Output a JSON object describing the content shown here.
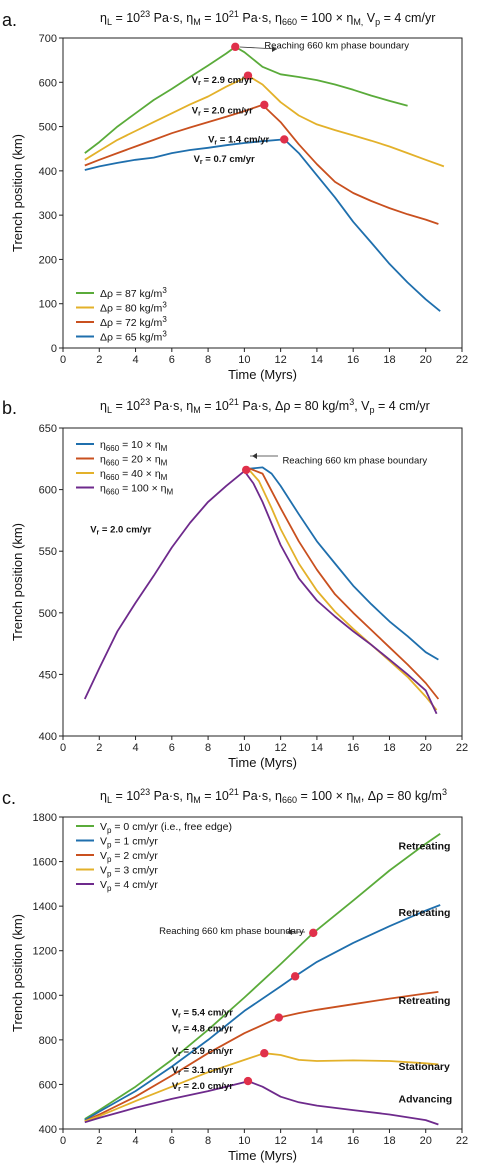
{
  "panels": [
    {
      "label": "a.",
      "title": "η_L = 10^23 Pa·s,  η_M = 10^21 Pa·s,  η_660 = 100 × η_M,  V_p = 4 cm/yr",
      "title_html": "η<tspan dy='3' font-size='9'>L</tspan><tspan dy='-3'> = 10</tspan><tspan dy='-5' font-size='9'>23</tspan><tspan dy='5'> Pa·s,  η</tspan><tspan dy='3' font-size='9'>M</tspan><tspan dy='-3'> = 10</tspan><tspan dy='-5' font-size='9'>21</tspan><tspan dy='5'> Pa·s,  η</tspan><tspan dy='3' font-size='9'>660</tspan><tspan dy='-3'> = 100 × η</tspan><tspan dy='3' font-size='9'>M,</tspan><tspan dy='-3'>  V</tspan><tspan dy='3' font-size='9'>p</tspan><tspan dy='-3'> = 4 cm/yr</tspan>"
    },
    {
      "label": "b.",
      "title": "η_L = 10^23 Pa·s,  η_M = 10^21 Pa·s,  Δρ = 80 kg/m³,  V_p = 4 cm/yr",
      "title_html": "η<tspan dy='3' font-size='9'>L</tspan><tspan dy='-3'> = 10</tspan><tspan dy='-5' font-size='9'>23</tspan><tspan dy='5'> Pa·s,  η</tspan><tspan dy='3' font-size='9'>M</tspan><tspan dy='-3'> = 10</tspan><tspan dy='-5' font-size='9'>21</tspan><tspan dy='5'> Pa·s,  Δρ = 80 kg/m</tspan><tspan dy='-5' font-size='9'>3</tspan><tspan dy='5'>,  V</tspan><tspan dy='3' font-size='9'>p</tspan><tspan dy='-3'> = 4 cm/yr</tspan>"
    },
    {
      "label": "c.",
      "title": "η_L = 10^23 Pa·s,  η_M = 10^21 Pa·s,  η_660 = 100 × η_M,  Δρ = 80 kg/m³",
      "title_html": "η<tspan dy='3' font-size='9'>L</tspan><tspan dy='-3'> = 10</tspan><tspan dy='-5' font-size='9'>23</tspan><tspan dy='5'> Pa·s,  η</tspan><tspan dy='3' font-size='9'>M</tspan><tspan dy='-3'> = 10</tspan><tspan dy='-5' font-size='9'>21</tspan><tspan dy='5'> Pa·s,  η</tspan><tspan dy='3' font-size='9'>660</tspan><tspan dy='-3'> = 100 × η</tspan><tspan dy='3' font-size='9'>M</tspan><tspan dy='-3'>,  Δρ = 80 kg/m</tspan><tspan dy='-5' font-size='9'>3</tspan><tspan dy='5'></tspan>"
    }
  ],
  "colors": {
    "green": "#5aab3a",
    "yellow": "#e3b12a",
    "orange": "#c9501f",
    "blue": "#1f6fad",
    "purple": "#6e2a8c",
    "marker": "#e0304a"
  },
  "chart_data": [
    {
      "type": "line",
      "xlabel": "Time (Myrs)",
      "ylabel": "Trench position (km)",
      "xlim": [
        0,
        22
      ],
      "ylim": [
        0,
        700
      ],
      "xticks": [
        0,
        2,
        4,
        6,
        8,
        10,
        12,
        14,
        16,
        18,
        20,
        22
      ],
      "yticks": [
        0,
        100,
        200,
        300,
        400,
        500,
        600,
        700
      ],
      "legend_position": "bottom-left",
      "series": [
        {
          "name": "Δρ = 87 kg/m³",
          "name_html": "Δρ = 87 kg/m<tspan dy='-4' font-size='8'>3</tspan>",
          "color": "#5aab3a",
          "x": [
            1.2,
            2,
            3,
            4,
            5,
            6,
            7,
            8,
            9,
            9.5,
            10,
            11,
            12,
            13,
            14,
            15,
            16,
            17,
            18,
            19
          ],
          "y": [
            440,
            465,
            500,
            530,
            560,
            585,
            612,
            638,
            665,
            680,
            668,
            635,
            618,
            612,
            605,
            595,
            583,
            570,
            558,
            547
          ]
        },
        {
          "name": "Δρ = 80 kg/m³",
          "name_html": "Δρ = 80 kg/m<tspan dy='-4' font-size='8'>3</tspan>",
          "color": "#e3b12a",
          "x": [
            1.2,
            2,
            3,
            4,
            5,
            6,
            7,
            8,
            9,
            10,
            10.2,
            11,
            12,
            13,
            14,
            15,
            16,
            17,
            18,
            19,
            20,
            21
          ],
          "y": [
            425,
            445,
            470,
            490,
            510,
            530,
            550,
            568,
            590,
            610,
            615,
            595,
            555,
            525,
            505,
            492,
            480,
            468,
            455,
            440,
            425,
            410
          ]
        },
        {
          "name": "Δρ = 72 kg/m³",
          "name_html": "Δρ = 72 kg/m<tspan dy='-4' font-size='8'>3</tspan>",
          "color": "#c9501f",
          "x": [
            1.2,
            2,
            3,
            4,
            5,
            6,
            7,
            8,
            9,
            10,
            11,
            12,
            13,
            14,
            15,
            16,
            17,
            18,
            19,
            20,
            20.7
          ],
          "y": [
            412,
            425,
            440,
            455,
            470,
            485,
            498,
            510,
            522,
            535,
            549,
            510,
            460,
            415,
            375,
            350,
            332,
            316,
            302,
            290,
            280
          ]
        },
        {
          "name": "Δρ = 65 kg/m³",
          "name_html": "Δρ = 65 kg/m<tspan dy='-4' font-size='8'>3</tspan>",
          "color": "#1f6fad",
          "x": [
            1.2,
            2,
            3,
            4,
            5,
            6,
            7,
            8,
            9,
            10,
            11,
            12.2,
            13,
            14,
            15,
            16,
            17,
            18,
            19,
            20,
            20.8
          ],
          "y": [
            402,
            410,
            418,
            425,
            430,
            440,
            447,
            452,
            458,
            463,
            467,
            471,
            440,
            390,
            340,
            285,
            238,
            190,
            148,
            110,
            83
          ]
        }
      ],
      "markers": [
        {
          "x": 9.5,
          "y": 680
        },
        {
          "x": 10.2,
          "y": 615
        },
        {
          "x": 11.1,
          "y": 549
        },
        {
          "x": 12.2,
          "y": 471
        }
      ],
      "annotations": [
        {
          "text": "Reaching 660 km phase boundary",
          "x": 11.1,
          "y": 676
        },
        {
          "text_html": "V<tspan dy='2' font-size='7'>r</tspan><tspan dy='-2'> = 2.9 cm/yr</tspan>",
          "x": 7.1,
          "y": 598,
          "bold": true
        },
        {
          "text_html": "V<tspan dy='2' font-size='7'>r</tspan><tspan dy='-2'> = 2.0 cm/yr</tspan>",
          "x": 7.1,
          "y": 530,
          "bold": true
        },
        {
          "text_html": "V<tspan dy='2' font-size='7'>r</tspan><tspan dy='-2'> = 1.4 cm/yr</tspan>",
          "x": 8.0,
          "y": 464,
          "bold": true
        },
        {
          "text_html": "V<tspan dy='2' font-size='7'>r</tspan><tspan dy='-2'> = 0.7 cm/yr</tspan>",
          "x": 7.2,
          "y": 420,
          "bold": true
        }
      ]
    },
    {
      "type": "line",
      "xlabel": "Time (Myrs)",
      "ylabel": "Trench position (km)",
      "xlim": [
        0,
        22
      ],
      "ylim": [
        400,
        650
      ],
      "xticks": [
        0,
        2,
        4,
        6,
        8,
        10,
        12,
        14,
        16,
        18,
        20,
        22
      ],
      "yticks": [
        400,
        450,
        500,
        550,
        600,
        650
      ],
      "legend_position": "top-left",
      "series": [
        {
          "name": "η660 = 10 × ηM",
          "name_html": "η<tspan dy='3' font-size='8'>660</tspan><tspan dy='-3'> = 10 × η</tspan><tspan dy='3' font-size='8'>M</tspan>",
          "color": "#1f6fad",
          "x": [
            10.3,
            11,
            11.5,
            12,
            13,
            14,
            15,
            16,
            17,
            18,
            19,
            20,
            20.7
          ],
          "y": [
            617,
            618,
            613,
            603,
            580,
            558,
            540,
            522,
            507,
            493,
            481,
            468,
            462
          ]
        },
        {
          "name": "η660 = 20 × ηM",
          "name_html": "η<tspan dy='3' font-size='8'>660</tspan><tspan dy='-3'> = 20 × η</tspan><tspan dy='3' font-size='8'>M</tspan>",
          "color": "#c9501f",
          "x": [
            10.3,
            11,
            12,
            13,
            14,
            15,
            16,
            17,
            18,
            19,
            20,
            20.7
          ],
          "y": [
            617,
            613,
            585,
            558,
            535,
            515,
            500,
            486,
            472,
            458,
            443,
            430
          ]
        },
        {
          "name": "η660 = 40 × ηM",
          "name_html": "η<tspan dy='3' font-size='8'>660</tspan><tspan dy='-3'> = 40 × η</tspan><tspan dy='3' font-size='8'>M</tspan>",
          "color": "#e3b12a",
          "x": [
            10.2,
            10.8,
            11.5,
            12,
            13,
            14,
            15,
            16,
            17,
            18,
            19,
            20,
            20.6
          ],
          "y": [
            617,
            607,
            585,
            568,
            540,
            518,
            501,
            487,
            474,
            461,
            448,
            432,
            421
          ]
        },
        {
          "name": "η660 = 100 × ηM",
          "name_html": "η<tspan dy='3' font-size='8'>660</tspan><tspan dy='-3'> = 100 × η</tspan><tspan dy='3' font-size='8'>M</tspan>",
          "color": "#6e2a8c",
          "x": [
            1.2,
            2,
            3,
            4,
            5,
            6,
            7,
            8,
            9,
            10,
            10.5,
            11,
            12,
            13,
            14,
            15,
            16,
            17,
            18,
            19,
            20,
            20.6
          ],
          "y": [
            430,
            455,
            485,
            508,
            530,
            553,
            573,
            590,
            603,
            615,
            605,
            590,
            555,
            528,
            510,
            497,
            485,
            474,
            462,
            450,
            437,
            418
          ]
        }
      ],
      "markers": [
        {
          "x": 10.1,
          "y": 616
        }
      ],
      "annotations": [
        {
          "text": "Reaching 660 km phase boundary",
          "x": 12.1,
          "y": 621
        },
        {
          "text_html": "V<tspan dy='2' font-size='7'>r</tspan><tspan dy='-2'> = 2.0 cm/yr</tspan>",
          "x": 1.5,
          "y": 565,
          "bold": true
        }
      ]
    },
    {
      "type": "line",
      "xlabel": "Time (Myrs)",
      "ylabel": "Trench position (km)",
      "xlim": [
        0,
        22
      ],
      "ylim": [
        400,
        1800
      ],
      "xticks": [
        0,
        2,
        4,
        6,
        8,
        10,
        12,
        14,
        16,
        18,
        20,
        22
      ],
      "yticks": [
        400,
        600,
        800,
        1000,
        1200,
        1400,
        1600,
        1800
      ],
      "legend_position": "top-left",
      "series": [
        {
          "name": "Vp = 0 cm/yr (i.e., free edge)",
          "name_html": "V<tspan dy='3' font-size='8'>p</tspan><tspan dy='-3'> = 0 cm/yr (i.e., free edge)</tspan>",
          "color": "#5aab3a",
          "x": [
            1.2,
            2,
            4,
            6,
            8,
            10,
            12,
            13.8,
            16,
            18,
            20,
            20.8
          ],
          "y": [
            445,
            485,
            590,
            710,
            845,
            990,
            1140,
            1280,
            1425,
            1560,
            1680,
            1725
          ]
        },
        {
          "name": "Vp = 1 cm/yr",
          "name_html": "V<tspan dy='3' font-size='8'>p</tspan><tspan dy='-3'> = 1 cm/yr</tspan>",
          "color": "#1f6fad",
          "x": [
            1.2,
            2,
            4,
            6,
            8,
            10,
            12,
            12.8,
            14,
            16,
            18,
            20,
            20.8
          ],
          "y": [
            440,
            478,
            570,
            680,
            800,
            930,
            1040,
            1085,
            1150,
            1235,
            1310,
            1380,
            1405
          ]
        },
        {
          "name": "Vp = 2 cm/yr",
          "name_html": "V<tspan dy='3' font-size='8'>p</tspan><tspan dy='-3'> = 2 cm/yr</tspan>",
          "color": "#c9501f",
          "x": [
            1.2,
            2,
            4,
            6,
            8,
            10,
            11.9,
            13,
            14,
            16,
            18,
            20,
            20.7
          ],
          "y": [
            435,
            465,
            545,
            640,
            740,
            830,
            900,
            920,
            935,
            960,
            985,
            1008,
            1015
          ]
        },
        {
          "name": "Vp = 3 cm/yr",
          "name_html": "V<tspan dy='3' font-size='8'>p</tspan><tspan dy='-3'> = 3 cm/yr</tspan>",
          "color": "#e3b12a",
          "x": [
            1.2,
            2,
            4,
            6,
            8,
            10,
            11.1,
            12,
            13,
            14,
            16,
            18,
            20,
            20.7
          ],
          "y": [
            435,
            458,
            525,
            590,
            655,
            710,
            740,
            732,
            710,
            705,
            708,
            705,
            695,
            690
          ]
        },
        {
          "name": "Vp = 4 cm/yr",
          "name_html": "V<tspan dy='3' font-size='8'>p</tspan><tspan dy='-3'> = 4 cm/yr</tspan>",
          "color": "#6e2a8c",
          "x": [
            1.2,
            2,
            4,
            6,
            8,
            10,
            10.2,
            11,
            12,
            13,
            14,
            16,
            18,
            20,
            20.7
          ],
          "y": [
            430,
            450,
            495,
            535,
            570,
            610,
            615,
            590,
            545,
            520,
            505,
            485,
            465,
            440,
            420
          ]
        }
      ],
      "markers": [
        {
          "x": 13.8,
          "y": 1280
        },
        {
          "x": 12.8,
          "y": 1085
        },
        {
          "x": 11.9,
          "y": 900
        },
        {
          "x": 11.1,
          "y": 740
        },
        {
          "x": 10.2,
          "y": 615
        }
      ],
      "annotations": [
        {
          "text": "Reaching 660 km phase boundary",
          "x": 5.3,
          "y": 1276
        },
        {
          "text_html": "V<tspan dy='2' font-size='7'>r</tspan><tspan dy='-2'> = 5.4 cm/yr</tspan>",
          "x": 6.0,
          "y": 910,
          "bold": true
        },
        {
          "text_html": "V<tspan dy='2' font-size='7'>r</tspan><tspan dy='-2'> = 4.8 cm/yr</tspan>",
          "x": 6.0,
          "y": 838,
          "bold": true
        },
        {
          "text_html": "V<tspan dy='2' font-size='7'>r</tspan><tspan dy='-2'> = 3.9 cm/yr</tspan>",
          "x": 6.0,
          "y": 736,
          "bold": true
        },
        {
          "text_html": "V<tspan dy='2' font-size='7'>r</tspan><tspan dy='-2'> = 3.1 cm/yr</tspan>",
          "x": 6.0,
          "y": 652,
          "bold": true
        },
        {
          "text_html": "V<tspan dy='2' font-size='7'>r</tspan><tspan dy='-2'> = 2.0 cm/yr</tspan>",
          "x": 6.0,
          "y": 580,
          "bold": true
        }
      ],
      "state_labels": [
        {
          "text": "Retreating",
          "x": 18.5,
          "y": 1655
        },
        {
          "text": "Retreating",
          "x": 18.5,
          "y": 1355
        },
        {
          "text": "Retreating",
          "x": 18.5,
          "y": 960
        },
        {
          "text": "Stationary",
          "x": 18.5,
          "y": 665
        },
        {
          "text": "Advancing",
          "x": 18.5,
          "y": 520
        }
      ]
    }
  ]
}
